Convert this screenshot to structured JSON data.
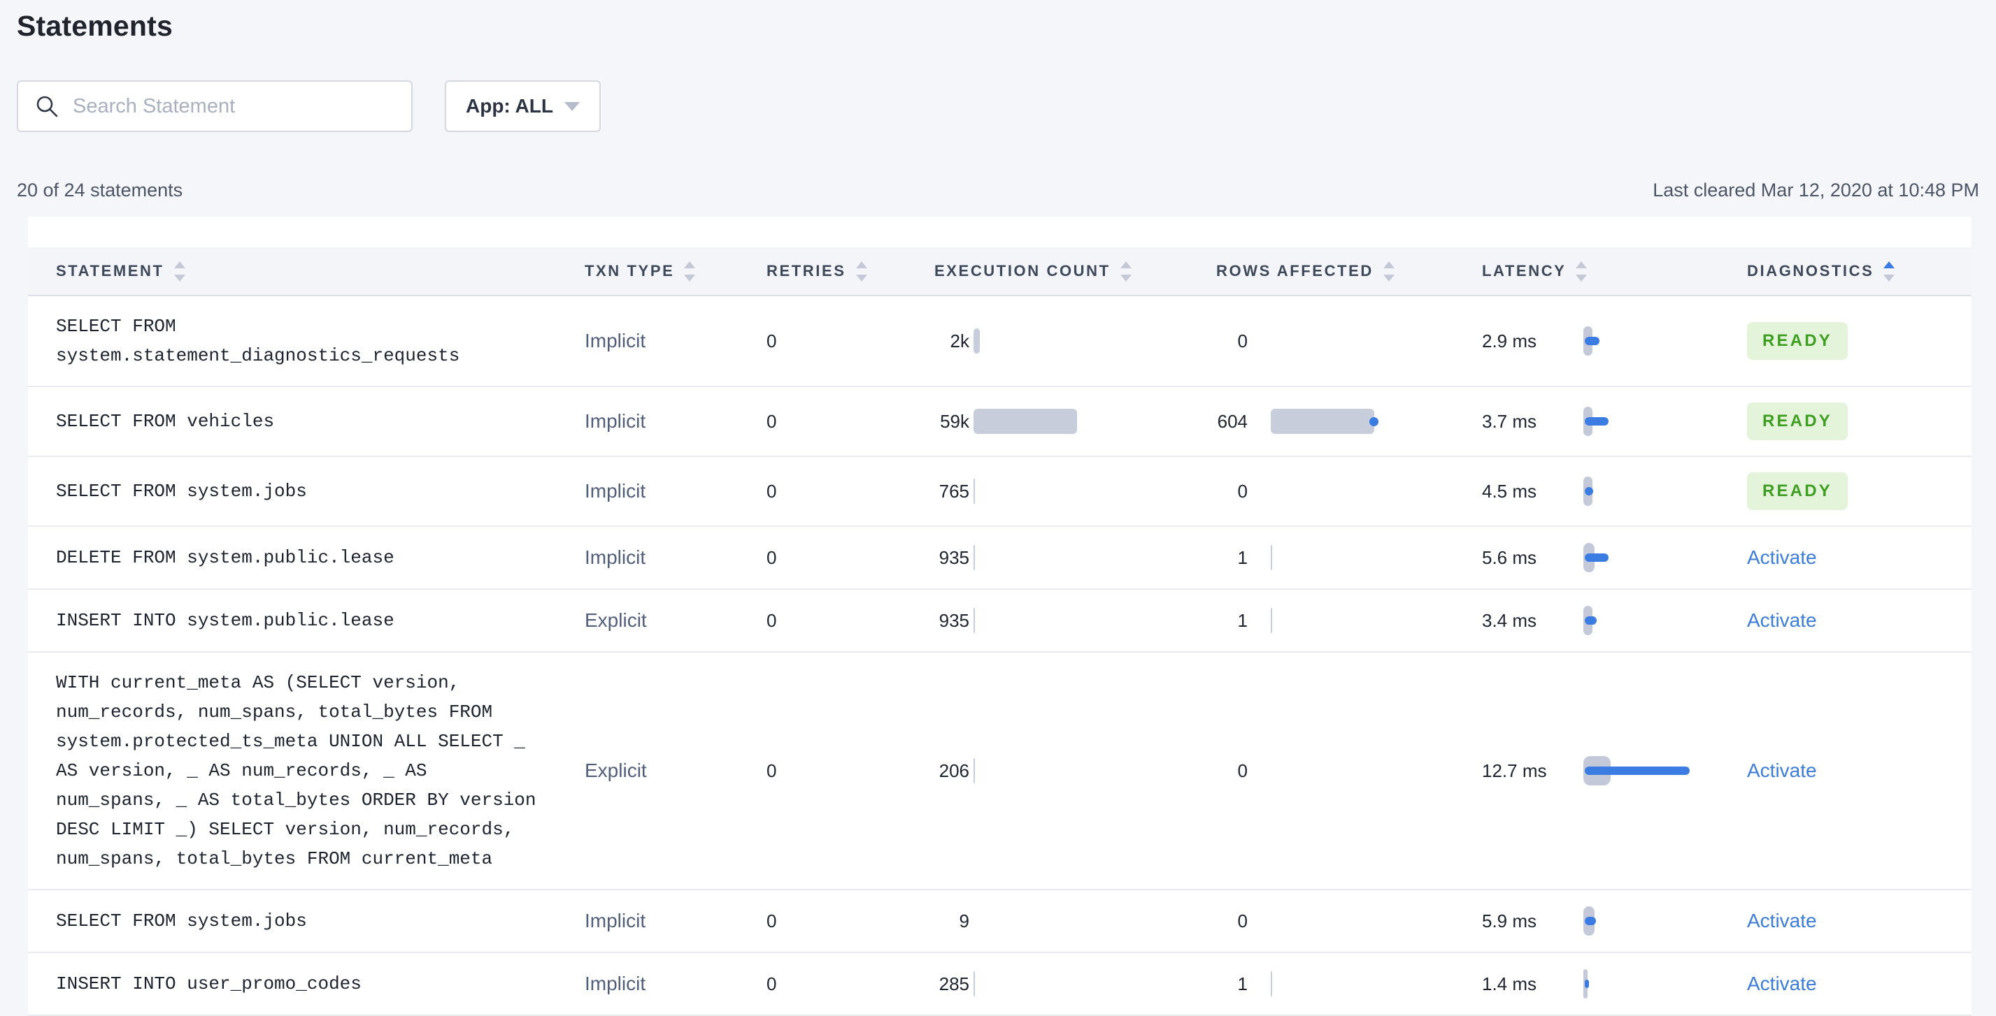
{
  "page": {
    "title": "Statements"
  },
  "toolbar": {
    "search_placeholder": "Search Statement",
    "search_value": "",
    "app_filter_label": "App: ALL"
  },
  "summary": {
    "count_text": "20 of 24 statements",
    "last_cleared": "Last cleared Mar 12, 2020 at 10:48 PM"
  },
  "colors": {
    "accent_blue": "#3a7ce2",
    "bar_grey": "#c7cdda",
    "ready_green": "#3e9e21",
    "ready_bg": "#e3f4da",
    "page_bg": "#f5f6fa"
  },
  "table": {
    "columns": [
      {
        "label": "STATEMENT",
        "sort": "none"
      },
      {
        "label": "TXN TYPE",
        "sort": "none"
      },
      {
        "label": "RETRIES",
        "sort": "none"
      },
      {
        "label": "EXECUTION COUNT",
        "sort": "none"
      },
      {
        "label": "ROWS AFFECTED",
        "sort": "none"
      },
      {
        "label": "LATENCY",
        "sort": "none"
      },
      {
        "label": "DIAGNOSTICS",
        "sort": "asc"
      }
    ],
    "rows": [
      {
        "statement": "SELECT FROM system.statement_diagnostics_requests",
        "txn_type": "Implicit",
        "retries": "0",
        "execution_count": "2k",
        "rows_affected": "0",
        "latency": "2.9 ms",
        "diagnostics": {
          "type": "ready",
          "label": "READY"
        },
        "viz": {
          "exec_w": 9,
          "rows_w": 0,
          "rows_dot": false,
          "lat_w": 21,
          "lat_spread": 13
        }
      },
      {
        "statement": "SELECT FROM vehicles",
        "txn_type": "Implicit",
        "retries": "0",
        "execution_count": "59k",
        "rows_affected": "604",
        "latency": "3.7 ms",
        "diagnostics": {
          "type": "ready",
          "label": "READY"
        },
        "viz": {
          "exec_w": 148,
          "rows_w": 148,
          "rows_dot": true,
          "lat_w": 34,
          "lat_spread": 13
        }
      },
      {
        "statement": "SELECT FROM system.jobs",
        "txn_type": "Implicit",
        "retries": "0",
        "execution_count": "765",
        "rows_affected": "0",
        "latency": "4.5 ms",
        "diagnostics": {
          "type": "ready",
          "label": "READY"
        },
        "viz": {
          "exec_w": 2,
          "rows_w": 0,
          "rows_dot": false,
          "lat_w": 12,
          "lat_spread": 13
        }
      },
      {
        "statement": "DELETE FROM system.public.lease",
        "txn_type": "Implicit",
        "retries": "0",
        "execution_count": "935",
        "rows_affected": "1",
        "latency": "5.6 ms",
        "diagnostics": {
          "type": "activate",
          "label": "Activate"
        },
        "viz": {
          "exec_w": 2,
          "rows_w": 2,
          "rows_dot": false,
          "lat_w": 34,
          "lat_spread": 16
        }
      },
      {
        "statement": "INSERT INTO system.public.lease",
        "txn_type": "Explicit",
        "retries": "0",
        "execution_count": "935",
        "rows_affected": "1",
        "latency": "3.4 ms",
        "diagnostics": {
          "type": "activate",
          "label": "Activate"
        },
        "viz": {
          "exec_w": 2,
          "rows_w": 2,
          "rows_dot": false,
          "lat_w": 17,
          "lat_spread": 13
        }
      },
      {
        "statement": "WITH current_meta AS (SELECT version, num_records, num_spans, total_bytes FROM system.protected_ts_meta UNION ALL SELECT _ AS version, _ AS num_records, _ AS num_spans, _ AS total_bytes ORDER BY version DESC LIMIT _) SELECT version, num_records, num_spans, total_bytes FROM current_meta",
        "txn_type": "Explicit",
        "retries": "0",
        "execution_count": "206",
        "rows_affected": "0",
        "latency": "12.7 ms",
        "diagnostics": {
          "type": "activate",
          "label": "Activate"
        },
        "viz": {
          "exec_w": 1.5,
          "rows_w": 0,
          "rows_dot": false,
          "lat_w": 150,
          "lat_spread": 39
        }
      },
      {
        "statement": "SELECT FROM system.jobs",
        "txn_type": "Implicit",
        "retries": "0",
        "execution_count": "9",
        "rows_affected": "0",
        "latency": "5.9 ms",
        "diagnostics": {
          "type": "activate",
          "label": "Activate"
        },
        "viz": {
          "exec_w": 0,
          "rows_w": 0,
          "rows_dot": false,
          "lat_w": 16,
          "lat_spread": 16
        }
      },
      {
        "statement": "INSERT INTO user_promo_codes",
        "txn_type": "Implicit",
        "retries": "0",
        "execution_count": "285",
        "rows_affected": "1",
        "latency": "1.4 ms",
        "diagnostics": {
          "type": "activate",
          "label": "Activate"
        },
        "viz": {
          "exec_w": 1.5,
          "rows_w": 2,
          "rows_dot": false,
          "lat_w": 6,
          "lat_spread": 6
        }
      }
    ]
  }
}
